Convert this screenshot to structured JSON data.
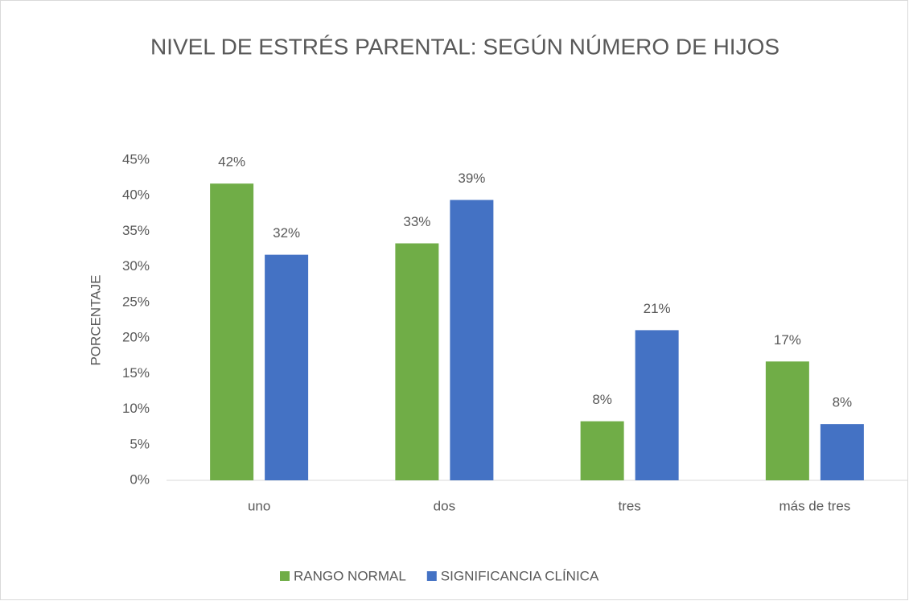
{
  "chart_data": {
    "type": "bar",
    "title": "NIVEL DE ESTRÉS PARENTAL: SEGÚN NÚMERO DE HIJOS",
    "y_label": "PORCENTAJE",
    "categories": [
      "uno",
      "dos",
      "tres",
      "más de tres"
    ],
    "series": [
      {
        "name": "RANGO NORMAL",
        "color": "#70ad47",
        "values": [
          41.7,
          33.3,
          8.3,
          16.7
        ],
        "value_labels": [
          "42%",
          "33%",
          "8%",
          "17%"
        ]
      },
      {
        "name": "SIGNIFICANCIA CLÍNICA",
        "color": "#4472c4",
        "values": [
          31.7,
          39.4,
          21.1,
          7.9
        ],
        "value_labels": [
          "32%",
          "39%",
          "21%",
          "8%"
        ]
      }
    ],
    "ylim": [
      0,
      45
    ],
    "yticks": [
      {
        "value": 0,
        "label": "0%"
      },
      {
        "value": 5,
        "label": "5%"
      },
      {
        "value": 10,
        "label": "10%"
      },
      {
        "value": 15,
        "label": "15%"
      },
      {
        "value": 20,
        "label": "20%"
      },
      {
        "value": 25,
        "label": "25%"
      },
      {
        "value": 30,
        "label": "30%"
      },
      {
        "value": 35,
        "label": "35%"
      },
      {
        "value": 40,
        "label": "40%"
      },
      {
        "value": 45,
        "label": "45%"
      }
    ],
    "grid": false,
    "legend": "bottom"
  }
}
